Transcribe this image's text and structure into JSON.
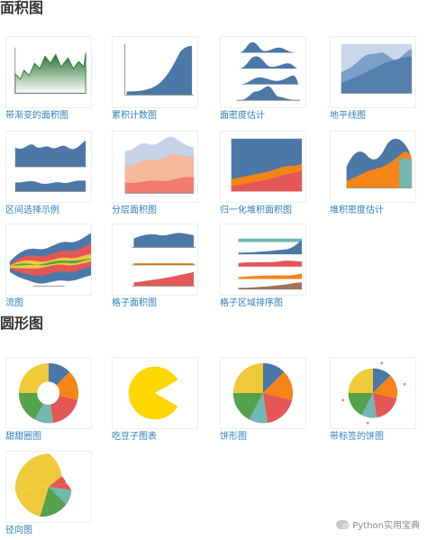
{
  "sections": {
    "area": {
      "title": "面积图"
    },
    "circle": {
      "title": "圆形图"
    }
  },
  "area_items": [
    {
      "label": "带渐变的面积图"
    },
    {
      "label": "累积计数图"
    },
    {
      "label": "面密度估计"
    },
    {
      "label": "地平线图"
    },
    {
      "label": "区间选择示例"
    },
    {
      "label": "分层面积图"
    },
    {
      "label": "归一化堆积面积图"
    },
    {
      "label": "堆积密度估计"
    },
    {
      "label": "流图"
    },
    {
      "label": "格子面积图"
    },
    {
      "label": "格子区域排序图"
    }
  ],
  "circle_items": [
    {
      "label": "甜甜圈图"
    },
    {
      "label": "吃豆子图表"
    },
    {
      "label": "饼形图"
    },
    {
      "label": "带标签的饼图"
    },
    {
      "label": "径向图"
    }
  ],
  "watermark": {
    "text": "Python实用宝典"
  },
  "colors": {
    "link": "#2f7fbf",
    "blue": "#4c78a8",
    "orange": "#f58518",
    "red": "#e45756",
    "teal": "#72b7b2",
    "green": "#54a24b",
    "yellow": "#eeca3b",
    "purple": "#b279a2",
    "brown": "#9d755d",
    "pacman": "#ffd700"
  }
}
